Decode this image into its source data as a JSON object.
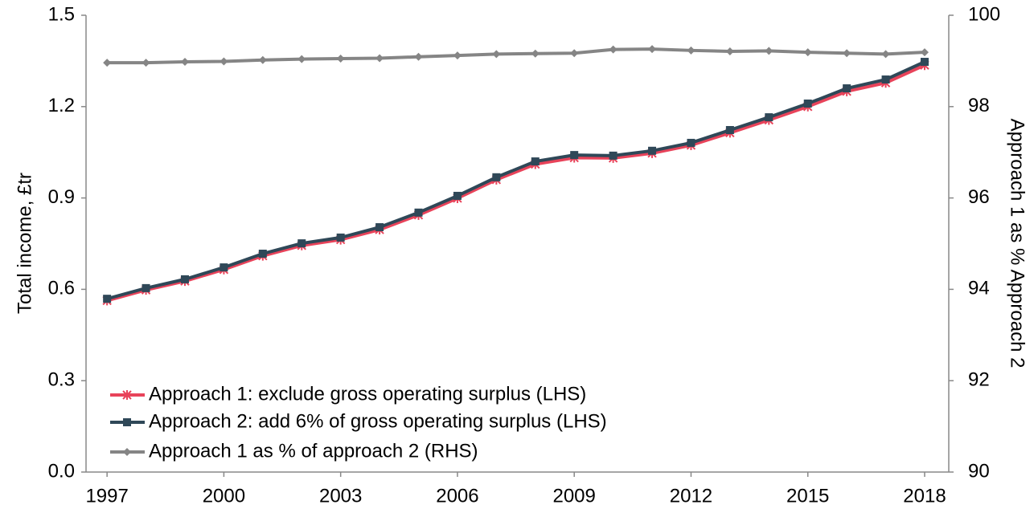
{
  "chart_data": {
    "type": "line",
    "x": [
      1997,
      1998,
      1999,
      2000,
      2001,
      2002,
      2003,
      2004,
      2005,
      2006,
      2007,
      2008,
      2009,
      2010,
      2011,
      2012,
      2013,
      2014,
      2015,
      2016,
      2017,
      2018
    ],
    "xlim": [
      1996.46,
      2018.62
    ],
    "xticks": [
      1997,
      2000,
      2003,
      2006,
      2009,
      2012,
      2015,
      2018
    ],
    "ylabel": "Total income, £tr",
    "y2label": "Approach 1 as % Approach 2",
    "ylim": [
      0,
      1.5
    ],
    "yticks": [
      {
        "value": 0,
        "label": "0.0"
      },
      0.3,
      0.6,
      0.9,
      1.2,
      1.5
    ],
    "y2lim": [
      90,
      100
    ],
    "y2ticks": [
      90,
      92,
      94,
      96,
      98,
      100
    ],
    "grid": false,
    "legend": "lower left",
    "series": [
      {
        "name": "Approach 1: exclude gross operating surplus (LHS)",
        "color": "#e8435a",
        "marker": "asterisk",
        "values": [
          0.563,
          0.598,
          0.627,
          0.665,
          0.71,
          0.744,
          0.763,
          0.796,
          0.844,
          0.899,
          0.96,
          1.011,
          1.032,
          1.031,
          1.047,
          1.073,
          1.114,
          1.156,
          1.2,
          1.25,
          1.278,
          1.336
        ]
      },
      {
        "name": "Approach 2: add 6% of gross operating surplus (LHS)",
        "color": "#2f4858",
        "marker": "square",
        "values": [
          0.569,
          0.604,
          0.633,
          0.672,
          0.717,
          0.751,
          0.77,
          0.804,
          0.852,
          0.907,
          0.968,
          1.02,
          1.041,
          1.039,
          1.055,
          1.081,
          1.123,
          1.165,
          1.21,
          1.26,
          1.289,
          1.347
        ]
      },
      {
        "name": "Approach 1 as % of approach 2 (RHS)",
        "color": "#858585",
        "marker": "diamond",
        "axis": "y2",
        "values": [
          98.96,
          98.96,
          98.98,
          98.99,
          99.02,
          99.04,
          99.05,
          99.06,
          99.09,
          99.12,
          99.15,
          99.16,
          99.17,
          99.25,
          99.26,
          99.23,
          99.21,
          99.22,
          99.19,
          99.17,
          99.15,
          99.19
        ]
      }
    ]
  }
}
